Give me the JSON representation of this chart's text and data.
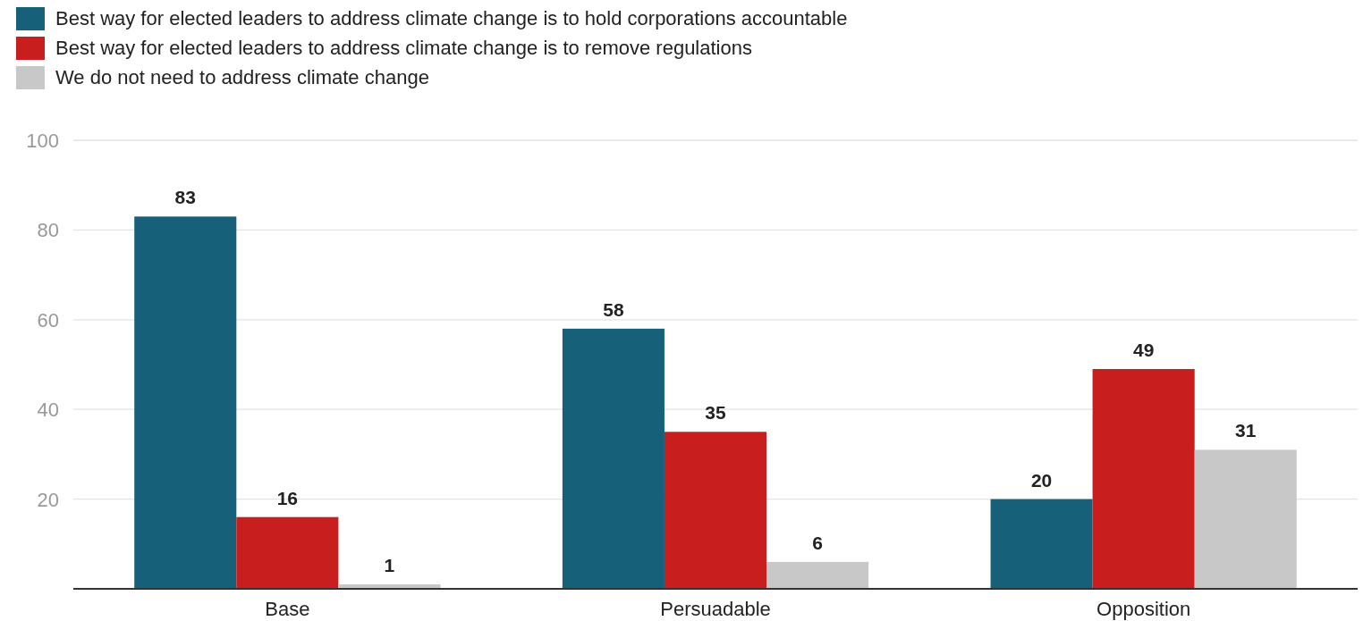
{
  "chart_data": {
    "type": "bar",
    "categories": [
      "Base",
      "Persuadable",
      "Opposition"
    ],
    "series": [
      {
        "name": "Best way for elected leaders to address climate change is to hold corporations accountable",
        "color": "#17607a",
        "values": [
          83,
          58,
          20
        ]
      },
      {
        "name": "Best way for elected leaders to address climate change is to remove regulations",
        "color": "#c81e1e",
        "values": [
          16,
          35,
          49
        ]
      },
      {
        "name": "We do not need to address climate change",
        "color": "#c8c8c8",
        "values": [
          1,
          6,
          31
        ]
      }
    ],
    "ylim": [
      0,
      100
    ],
    "yticks": [
      20,
      40,
      60,
      80,
      100
    ],
    "grid": "y",
    "legend": "top left",
    "data_labels": true
  }
}
